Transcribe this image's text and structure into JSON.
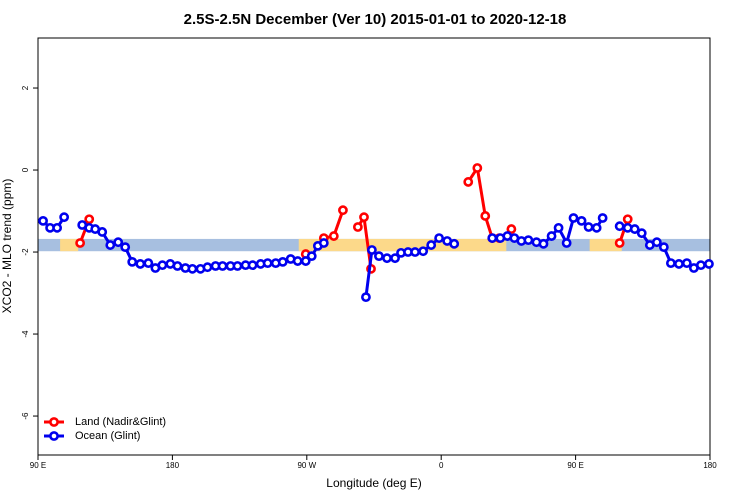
{
  "chart_data": {
    "type": "line",
    "title": "2.5S-2.5N December (Ver 10)   2015-01-01 to 2020-12-18",
    "xlabel": "Longitude (deg E)",
    "ylabel": "XCO2 - MLO trend (ppm)",
    "xlim": [
      90,
      540
    ],
    "ylim": [
      -6.95,
      3.22
    ],
    "xticks": [
      {
        "value": 90,
        "label": "90 E"
      },
      180,
      {
        "value": 270,
        "label": "90 W"
      },
      {
        "value": 360,
        "label": "0"
      },
      {
        "value": 450,
        "label": "90 E"
      },
      {
        "value": 540,
        "label": "180"
      }
    ],
    "yticks": [
      2,
      0,
      -2,
      -4,
      -6
    ],
    "band_range": [
      -1.98,
      -1.68
    ],
    "band_color": "#a7bfe0",
    "land_color": "#fcd98a",
    "land_ranges": [
      [
        104.8,
        116.9
      ],
      [
        264.6,
        403.6
      ],
      [
        459.4,
        480.9
      ]
    ],
    "legend": "bottom-left",
    "series": [
      {
        "name": "Land (Nadir&Glint)",
        "color": "#ff0000",
        "x": [
          118.2,
          124.3,
          null,
          269.3,
          null,
          281.4,
          288.1,
          294.2,
          null,
          304.2,
          308.3,
          313.0,
          null,
          378.1,
          384.2,
          389.5,
          394.2,
          398.9,
          null,
          407.0,
          null,
          479.5,
          484.9
        ],
        "values": [
          -1.78,
          -1.2,
          null,
          -2.05,
          null,
          -1.66,
          -1.61,
          -0.98,
          null,
          -1.39,
          -1.15,
          -2.41,
          null,
          -0.29,
          0.05,
          -1.12,
          -1.66,
          -1.66,
          null,
          -1.44,
          null,
          -1.78,
          -1.2
        ]
      },
      {
        "name": "Ocean (Glint)",
        "color": "#0000ee",
        "x": [
          93.4,
          98.1,
          102.8,
          107.5,
          null,
          119.6,
          124.3,
          128.3,
          133.0,
          138.4,
          143.7,
          148.4,
          153.1,
          158.5,
          163.9,
          168.6,
          173.3,
          178.6,
          183.4,
          188.7,
          193.4,
          198.8,
          203.5,
          208.9,
          213.6,
          218.9,
          223.6,
          229.0,
          233.7,
          239.1,
          243.8,
          249.2,
          253.9,
          259.2,
          263.9,
          269.3,
          273.3,
          277.4,
          281.4,
          null,
          309.6,
          313.6,
          318.3,
          323.7,
          329.1,
          333.1,
          337.8,
          342.5,
          347.9,
          353.3,
          358.6,
          364.0,
          368.7,
          null,
          394.2,
          399.6,
          404.3,
          409.0,
          413.7,
          418.4,
          423.8,
          428.5,
          433.9,
          438.6,
          444.0,
          448.6,
          454.0,
          458.7,
          464.1,
          468.1,
          null,
          479.5,
          484.9,
          489.6,
          494.3,
          499.7,
          504.4,
          509.1,
          513.8,
          519.2,
          524.5,
          529.2,
          533.9,
          539.3
        ],
        "values": [
          -1.24,
          -1.41,
          -1.41,
          -1.15,
          null,
          -1.34,
          -1.41,
          -1.44,
          -1.51,
          -1.83,
          -1.76,
          -1.88,
          -2.24,
          -2.29,
          -2.27,
          -2.39,
          -2.32,
          -2.29,
          -2.34,
          -2.39,
          -2.41,
          -2.41,
          -2.37,
          -2.34,
          -2.34,
          -2.34,
          -2.34,
          -2.32,
          -2.32,
          -2.29,
          -2.27,
          -2.27,
          -2.24,
          -2.17,
          -2.22,
          -2.22,
          -2.1,
          -1.85,
          -1.78,
          null,
          -3.1,
          -1.95,
          -2.1,
          -2.15,
          -2.15,
          -2.02,
          -2.0,
          -2.0,
          -1.98,
          -1.83,
          -1.66,
          -1.73,
          -1.8,
          null,
          -1.66,
          -1.66,
          -1.61,
          -1.66,
          -1.73,
          -1.71,
          -1.76,
          -1.8,
          -1.61,
          -1.41,
          -1.78,
          -1.17,
          -1.24,
          -1.39,
          -1.41,
          -1.17,
          null,
          -1.37,
          -1.41,
          -1.44,
          -1.54,
          -1.83,
          -1.76,
          -1.88,
          -2.27,
          -2.29,
          -2.27,
          -2.39,
          -2.32,
          -2.29
        ]
      }
    ]
  }
}
